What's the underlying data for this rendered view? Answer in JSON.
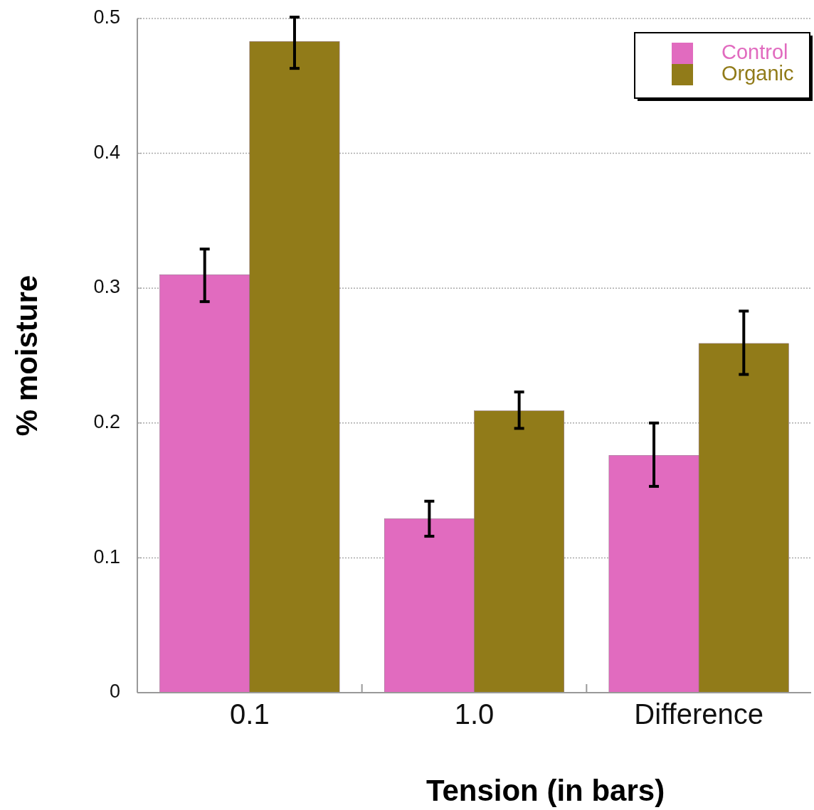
{
  "chart_data": {
    "type": "bar",
    "xlabel": "Tension (in bars)",
    "ylabel": "% moisture",
    "categories": [
      "0.1",
      "1.0",
      "Difference"
    ],
    "series": [
      {
        "name": "Control",
        "color": "#e16bbf",
        "values": [
          0.31,
          0.129,
          0.176
        ],
        "errors": [
          [
            0.29,
            0.329
          ],
          [
            0.116,
            0.142
          ],
          [
            0.153,
            0.2
          ]
        ]
      },
      {
        "name": "Organic",
        "color": "#917b19",
        "values": [
          0.483,
          0.209,
          0.259
        ],
        "errors": [
          [
            0.463,
            0.501
          ],
          [
            0.196,
            0.223
          ],
          [
            0.236,
            0.283
          ]
        ]
      }
    ],
    "ylim": [
      0,
      0.5
    ],
    "yticks": [
      0,
      0.1,
      0.2,
      0.3,
      0.4,
      0.5
    ],
    "grid": "y",
    "legend": "top right"
  }
}
